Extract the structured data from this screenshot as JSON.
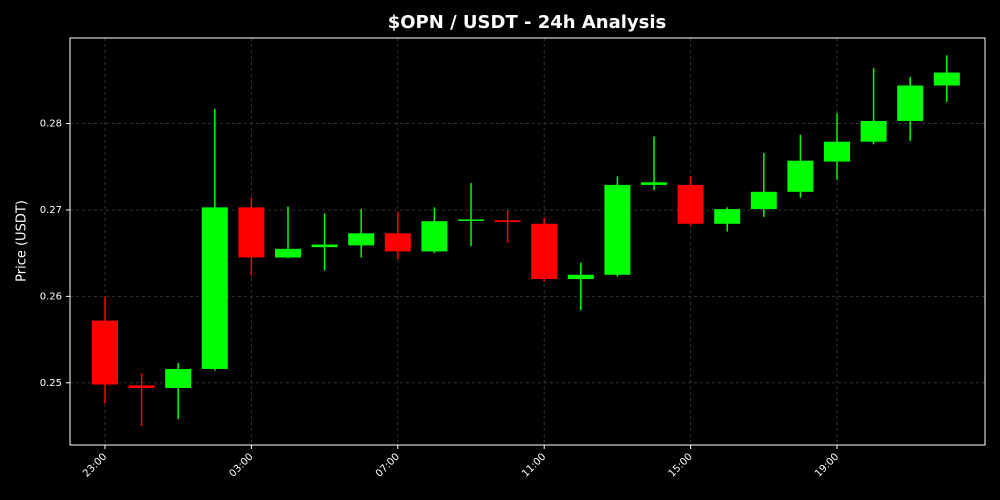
{
  "chart_data": {
    "type": "candlestick",
    "title": "$OPN / USDT - 24h Analysis",
    "y_label": "Price (USDT)",
    "categories": [
      "23:00",
      null,
      null,
      null,
      "03:00",
      null,
      null,
      null,
      "07:00",
      null,
      null,
      null,
      "11:00",
      null,
      null,
      null,
      "15:00",
      null,
      null,
      null,
      "19:00",
      null,
      null,
      null
    ],
    "open": [
      0.2572,
      0.2497,
      0.2494,
      0.2516,
      0.2703,
      0.2645,
      0.2657,
      0.2659,
      0.2673,
      0.2652,
      0.2688,
      0.2688,
      0.2684,
      0.262,
      0.2625,
      0.2729,
      0.2729,
      0.2684,
      0.2701,
      0.2721,
      0.2756,
      0.2779,
      0.2803,
      0.2844
    ],
    "high": [
      0.26,
      0.2511,
      0.2523,
      0.2817,
      0.2714,
      0.2704,
      0.2696,
      0.2701,
      0.2698,
      0.2703,
      0.2731,
      0.27,
      0.2691,
      0.2639,
      0.2739,
      0.2785,
      0.2739,
      0.2703,
      0.2766,
      0.2787,
      0.2812,
      0.2864,
      0.2854,
      0.2879
    ],
    "low": [
      0.2476,
      0.245,
      0.2458,
      0.2514,
      0.2624,
      0.2644,
      0.263,
      0.2645,
      0.2643,
      0.265,
      0.2658,
      0.2662,
      0.2617,
      0.2584,
      0.2623,
      0.2723,
      0.2681,
      0.2675,
      0.2692,
      0.2714,
      0.2735,
      0.2776,
      0.278,
      0.2825
    ],
    "close": [
      0.2498,
      0.2494,
      0.2516,
      0.2703,
      0.2645,
      0.2655,
      0.266,
      0.2673,
      0.2652,
      0.2687,
      0.2689,
      0.2686,
      0.262,
      0.2625,
      0.2729,
      0.2732,
      0.2684,
      0.2701,
      0.2721,
      0.2757,
      0.2779,
      0.2803,
      0.2844,
      0.2859
    ],
    "up_color": "#00ff00",
    "down_color": "#ff0000",
    "ylim": [
      0.2428,
      0.2899
    ],
    "yticks": [
      0.25,
      0.26,
      0.27,
      0.28
    ],
    "grid": true
  }
}
